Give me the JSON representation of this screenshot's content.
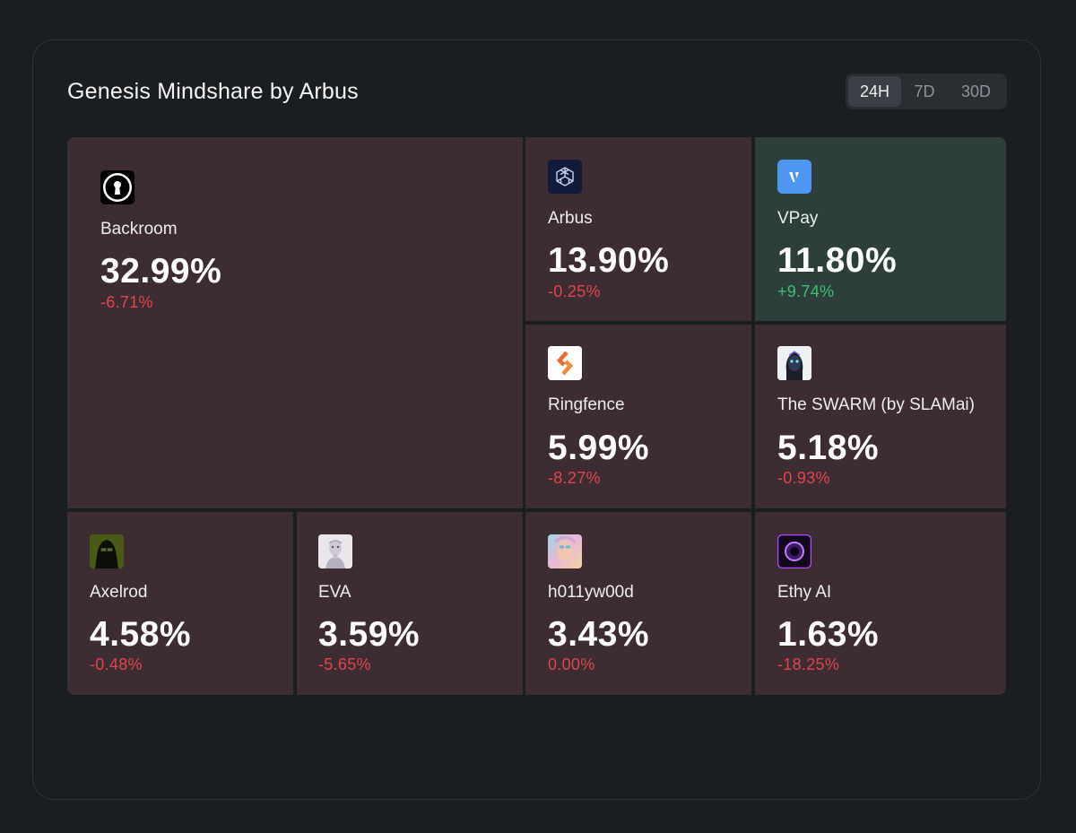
{
  "title": "Genesis Mindshare by Arbus",
  "ranges": {
    "options": [
      "24H",
      "7D",
      "30D"
    ],
    "selected": "24H"
  },
  "tiles": [
    {
      "name": "Backroom",
      "pct": "32.99%",
      "change": "-6.71%",
      "trend": "down",
      "icon": "keyhole-icon"
    },
    {
      "name": "Arbus",
      "pct": "13.90%",
      "change": "-0.25%",
      "trend": "down",
      "icon": "cube-network-icon"
    },
    {
      "name": "VPay",
      "pct": "11.80%",
      "change": "+9.74%",
      "trend": "up",
      "icon": "v-logo-icon"
    },
    {
      "name": "Ringfence",
      "pct": "5.99%",
      "change": "-8.27%",
      "trend": "down",
      "icon": "ring-chevron-icon"
    },
    {
      "name": "The SWARM (by SLAMai)",
      "pct": "5.18%",
      "change": "-0.93%",
      "trend": "down",
      "icon": "robot-face-icon"
    },
    {
      "name": "Axelrod",
      "pct": "4.58%",
      "change": "-0.48%",
      "trend": "down",
      "icon": "hooded-figure-icon"
    },
    {
      "name": "EVA",
      "pct": "3.59%",
      "change": "-5.65%",
      "trend": "down",
      "icon": "android-face-icon"
    },
    {
      "name": "h011yw00d",
      "pct": "3.43%",
      "change": "0.00%",
      "trend": "down",
      "icon": "pastel-face-icon"
    },
    {
      "name": "Ethy AI",
      "pct": "1.63%",
      "change": "-18.25%",
      "trend": "down",
      "icon": "purple-orb-icon"
    }
  ],
  "colors": {
    "tile_down": "#3d2c31",
    "tile_up": "#2c3f3a",
    "negative": "#e0464e",
    "positive": "#3fbf73"
  }
}
